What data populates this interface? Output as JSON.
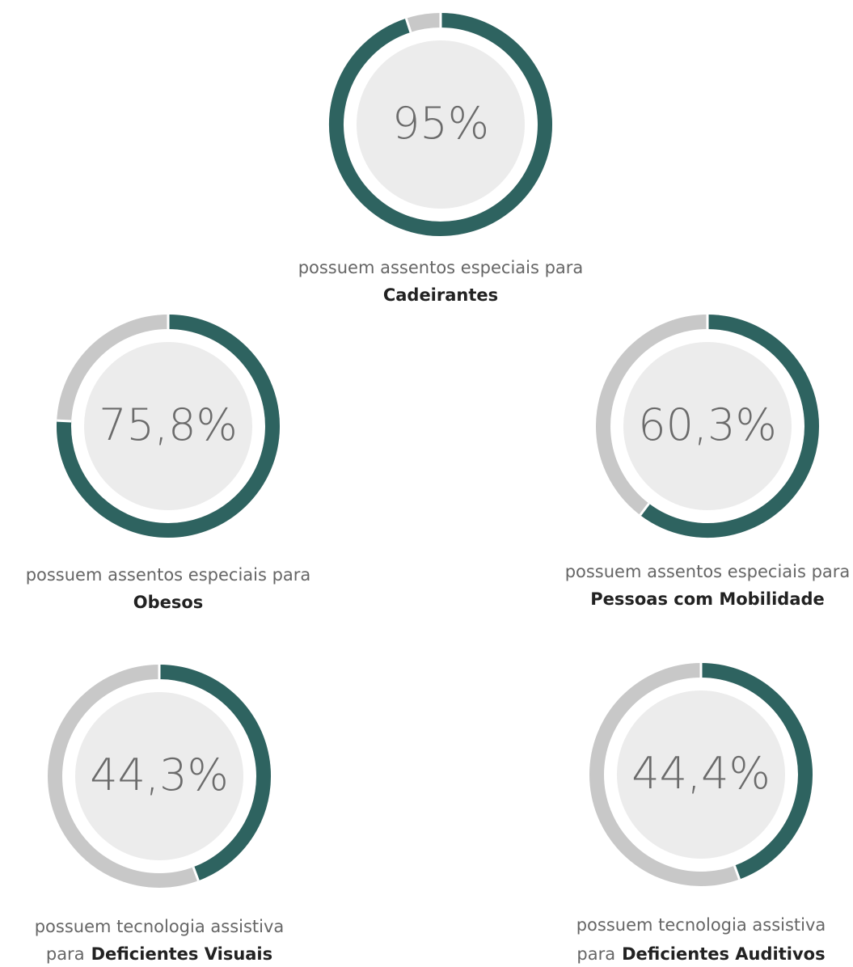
{
  "chart_data": [
    {
      "type": "donut",
      "values": [
        95
      ],
      "value_labels": [
        "95%"
      ],
      "ylim": [
        0,
        100
      ],
      "color": "#2e6360",
      "track_color": "#c8c8c8",
      "caption": "possuem assentos especiais para",
      "highlight": "Cadeirantes"
    },
    {
      "type": "donut",
      "values": [
        75.8
      ],
      "value_labels": [
        "75,8%"
      ],
      "ylim": [
        0,
        100
      ],
      "color": "#2e6360",
      "track_color": "#c8c8c8",
      "caption": "possuem assentos especiais para",
      "highlight": "Obesos"
    },
    {
      "type": "donut",
      "values": [
        60.3
      ],
      "value_labels": [
        "60,3%"
      ],
      "ylim": [
        0,
        100
      ],
      "color": "#2e6360",
      "track_color": "#c8c8c8",
      "caption": "possuem assentos especiais para",
      "highlight": "Pessoas com Mobilidade"
    },
    {
      "type": "donut",
      "values": [
        44.3
      ],
      "value_labels": [
        "44,3%"
      ],
      "ylim": [
        0,
        100
      ],
      "color": "#2e6360",
      "track_color": "#c8c8c8",
      "caption": "possuem tecnologia assistiva",
      "lead": "para",
      "highlight": "Deficientes Visuais"
    },
    {
      "type": "donut",
      "values": [
        44.4
      ],
      "value_labels": [
        "44,4%"
      ],
      "ylim": [
        0,
        100
      ],
      "color": "#2e6360",
      "track_color": "#c8c8c8",
      "caption": "possuem tecnologia assistiva",
      "lead": "para",
      "highlight": "Deficientes Auditivos"
    }
  ]
}
